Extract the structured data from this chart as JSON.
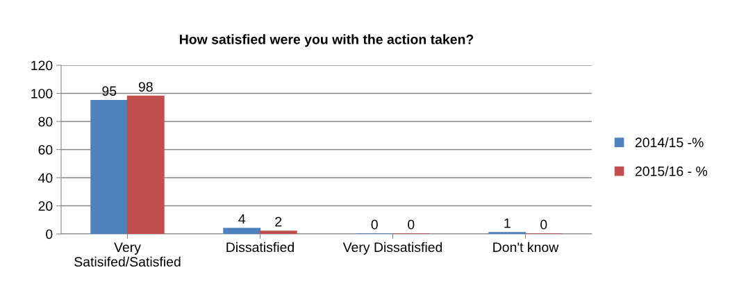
{
  "chart_data": {
    "type": "bar",
    "title": "How satisfied were you with the action taken?",
    "categories": [
      "Very\nSatisifed/Satisfied",
      "Dissatisfied",
      "Very Dissatisfied",
      "Don't know"
    ],
    "series": [
      {
        "name": "2014/15 -%",
        "color": "#4f81bd",
        "values": [
          95,
          4,
          0,
          1
        ]
      },
      {
        "name": "2015/16 - %",
        "color": "#c0504d",
        "values": [
          98,
          2,
          0,
          0
        ]
      }
    ],
    "ylim": [
      0,
      120
    ],
    "yticks": [
      0,
      20,
      40,
      60,
      80,
      100,
      120
    ],
    "grid": "y",
    "legend": "right",
    "data_labels": true
  }
}
